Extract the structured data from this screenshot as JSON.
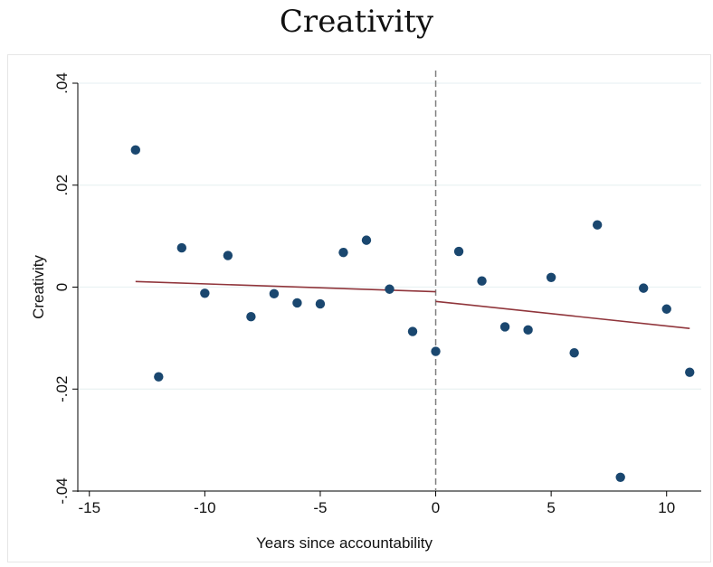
{
  "chart_data": {
    "type": "scatter",
    "title": "Creativity",
    "xlabel": "Years since accountability",
    "ylabel": "Creativity",
    "xlim": [
      -15.5,
      11.5
    ],
    "ylim": [
      -0.04,
      0.04
    ],
    "x_ticks": [
      -15,
      -10,
      -5,
      0,
      5,
      10
    ],
    "x_tick_labels": [
      "-15",
      "-10",
      "-5",
      "0",
      "5",
      "10"
    ],
    "y_ticks": [
      -0.04,
      -0.02,
      0,
      0.02,
      0.04
    ],
    "y_tick_labels": [
      "-.04",
      "-.02",
      "0",
      ".02",
      ".04"
    ],
    "grid": true,
    "cutoff_x": 0,
    "series": [
      {
        "type": "scatter",
        "color": "#1a476f",
        "points": [
          {
            "x": -13,
            "y": 0.0269
          },
          {
            "x": -12,
            "y": -0.0176
          },
          {
            "x": -11,
            "y": 0.0077
          },
          {
            "x": -10,
            "y": -0.0012
          },
          {
            "x": -9,
            "y": 0.0062
          },
          {
            "x": -8,
            "y": -0.0058
          },
          {
            "x": -7,
            "y": -0.0013
          },
          {
            "x": -6,
            "y": -0.0031
          },
          {
            "x": -5,
            "y": -0.0033
          },
          {
            "x": -4,
            "y": 0.0068
          },
          {
            "x": -3,
            "y": 0.0092
          },
          {
            "x": -2,
            "y": -0.0004
          },
          {
            "x": -1,
            "y": -0.0087
          },
          {
            "x": 0,
            "y": -0.0126
          },
          {
            "x": 1,
            "y": 0.007
          },
          {
            "x": 2,
            "y": 0.0012
          },
          {
            "x": 3,
            "y": -0.0078
          },
          {
            "x": 4,
            "y": -0.0084
          },
          {
            "x": 5,
            "y": 0.0019
          },
          {
            "x": 6,
            "y": -0.0129
          },
          {
            "x": 7,
            "y": 0.0122
          },
          {
            "x": 8,
            "y": -0.0373
          },
          {
            "x": 9,
            "y": -0.0002
          },
          {
            "x": 10,
            "y": -0.0043
          },
          {
            "x": 11,
            "y": -0.0167
          }
        ]
      },
      {
        "type": "line",
        "color": "#90353b",
        "points": [
          {
            "x": -13,
            "y": 0.0011
          },
          {
            "x": 0,
            "y": -0.0009
          }
        ]
      },
      {
        "type": "line",
        "color": "#90353b",
        "points": [
          {
            "x": 0,
            "y": -0.0028
          },
          {
            "x": 11,
            "y": -0.0081
          }
        ]
      }
    ]
  }
}
